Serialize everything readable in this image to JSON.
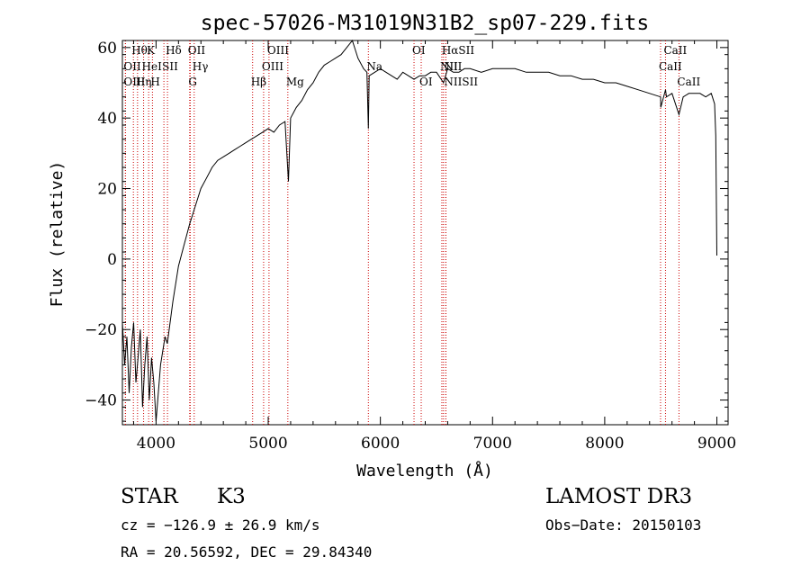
{
  "chart_data": {
    "type": "line",
    "title": "spec-57026-M31019N31B2_sp07-229.fits",
    "xlabel": "Wavelength (Å)",
    "ylabel": "Flux (relative)",
    "xlim": [
      3700,
      9100
    ],
    "ylim": [
      -47,
      62
    ],
    "xticks": [
      4000,
      5000,
      6000,
      7000,
      8000,
      9000
    ],
    "yticks": [
      -40,
      -20,
      0,
      20,
      40,
      60
    ],
    "grid": false,
    "line_color": "#000000",
    "marker_color": "#cc0000",
    "series": [
      {
        "x": [
          3700,
          3720,
          3740,
          3760,
          3780,
          3800,
          3820,
          3840,
          3860,
          3880,
          3900,
          3920,
          3940,
          3960,
          3980,
          4000,
          4020,
          4040,
          4060,
          4080,
          4100,
          4150,
          4200,
          4250,
          4300,
          4350,
          4400,
          4450,
          4500,
          4550,
          4600,
          4650,
          4700,
          4750,
          4800,
          4850,
          4900,
          4950,
          5000,
          5050,
          5100,
          5150,
          5180,
          5200,
          5250,
          5300,
          5350,
          5400,
          5450,
          5500,
          5550,
          5600,
          5650,
          5700,
          5750,
          5800,
          5850,
          5880,
          5893,
          5900,
          5950,
          6000,
          6050,
          6100,
          6150,
          6200,
          6250,
          6300,
          6350,
          6400,
          6450,
          6500,
          6563,
          6600,
          6650,
          6700,
          6750,
          6800,
          6900,
          7000,
          7100,
          7200,
          7300,
          7400,
          7500,
          7600,
          7700,
          7800,
          7900,
          8000,
          8100,
          8200,
          8300,
          8400,
          8498,
          8500,
          8542,
          8550,
          8600,
          8662,
          8700,
          8750,
          8800,
          8850,
          8900,
          8950,
          8980,
          8990,
          9000
        ],
        "y": [
          -18,
          -30,
          -22,
          -38,
          -25,
          -18,
          -35,
          -28,
          -20,
          -42,
          -30,
          -22,
          -40,
          -28,
          -35,
          -46,
          -38,
          -30,
          -26,
          -22,
          -24,
          -12,
          -2,
          4,
          10,
          15,
          20,
          23,
          26,
          28,
          29,
          30,
          31,
          32,
          33,
          34,
          35,
          36,
          37,
          36,
          38,
          39,
          22,
          40,
          43,
          45,
          48,
          50,
          53,
          55,
          56,
          57,
          58,
          60,
          62,
          57,
          54,
          53,
          37,
          52,
          53,
          54,
          53,
          52,
          51,
          53,
          52,
          51,
          52,
          52,
          53,
          53,
          50,
          54,
          53,
          53,
          54,
          54,
          53,
          54,
          54,
          54,
          53,
          53,
          53,
          52,
          52,
          51,
          51,
          50,
          50,
          49,
          48,
          47,
          46,
          43,
          48,
          46,
          47,
          41,
          46,
          47,
          47,
          47,
          46,
          47,
          44,
          35,
          1
        ]
      }
    ],
    "line_markers": [
      {
        "label": "Hθ",
        "x": 3798,
        "row": 0
      },
      {
        "label": "K",
        "x": 3934,
        "row": 0
      },
      {
        "label": "Hδ",
        "x": 4102,
        "row": 0
      },
      {
        "label": "OII",
        "x": 4300,
        "row": 0
      },
      {
        "label": "OIII",
        "x": 5007,
        "row": 0
      },
      {
        "label": "OI",
        "x": 6300,
        "row": 0
      },
      {
        "label": "HαSII",
        "x": 6563,
        "row": 0
      },
      {
        "label": "CaII",
        "x": 8542,
        "row": 0
      },
      {
        "label": "OII",
        "x": 3727,
        "row": 1
      },
      {
        "label": "HeI",
        "x": 3889,
        "row": 1
      },
      {
        "label": "SII",
        "x": 4070,
        "row": 1
      },
      {
        "label": "Hγ",
        "x": 4340,
        "row": 1
      },
      {
        "label": "OIII",
        "x": 4959,
        "row": 1
      },
      {
        "label": "Na",
        "x": 5893,
        "row": 1
      },
      {
        "label": "NII",
        "x": 6548,
        "row": 1
      },
      {
        "label": "NII",
        "x": 6584,
        "row": 1
      },
      {
        "label": "CaII",
        "x": 8498,
        "row": 1
      },
      {
        "label": "OIII",
        "x": 3727,
        "row": 2
      },
      {
        "label": "Hη",
        "x": 3835,
        "row": 2
      },
      {
        "label": "H",
        "x": 3968,
        "row": 2
      },
      {
        "label": "G",
        "x": 4305,
        "row": 2
      },
      {
        "label": "Hβ",
        "x": 4861,
        "row": 2
      },
      {
        "label": "Mg",
        "x": 5175,
        "row": 2
      },
      {
        "label": "OI",
        "x": 6364,
        "row": 2
      },
      {
        "label": "NIISII",
        "x": 6584,
        "row": 2
      },
      {
        "label": "CaII",
        "x": 8662,
        "row": 2
      }
    ]
  },
  "info": {
    "object_class": "STAR",
    "subclass": "K3",
    "survey": "LAMOST DR3",
    "cz": "cz = −126.9 ± 26.9 km/s",
    "obs_date": "Obs−Date: 20150103",
    "coords": "RA =  20.56592, DEC =  29.84340"
  }
}
